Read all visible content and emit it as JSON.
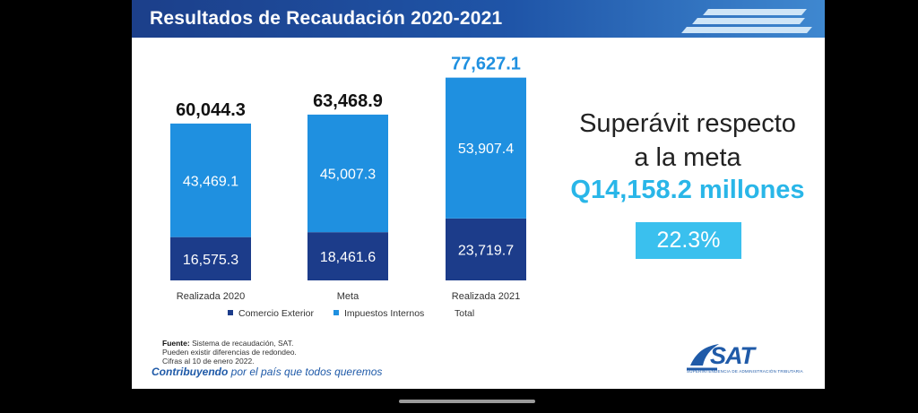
{
  "header": {
    "title": "Resultados de Recaudación 2020-2021"
  },
  "chart_data": {
    "type": "bar",
    "stacked": true,
    "categories": [
      "Realizada 2020",
      "Meta",
      "Realizada 2021"
    ],
    "series": [
      {
        "name": "Comercio Exterior",
        "values": [
          16575.3,
          18461.6,
          23719.7
        ],
        "labels": [
          "16,575.3",
          "18,461.6",
          "23,719.7"
        ],
        "color": "#1c3c8a"
      },
      {
        "name": "Impuestos Internos",
        "values": [
          43469.1,
          45007.3,
          53907.4
        ],
        "labels": [
          "43,469.1",
          "45,007.3",
          "53,907.4"
        ],
        "color": "#1f90e0"
      }
    ],
    "totals": [
      "60,044.3",
      "63,468.9",
      "77,627.1"
    ],
    "total_colors": [
      "#111111",
      "#111111",
      "#1f90e0"
    ],
    "legend": [
      {
        "label": "Comercio Exterior",
        "color": "#1c3c8a"
      },
      {
        "label": "Impuestos Internos",
        "color": "#1f90e0"
      },
      {
        "label": "Total",
        "color": ""
      }
    ],
    "legend_position": "bottom",
    "grid": false
  },
  "summary": {
    "line1": "Superávit respecto",
    "line2": "a la meta",
    "amount": "Q14,158.2 millones",
    "percent": "22.3%"
  },
  "footer": {
    "source_label": "Fuente:",
    "source_text": "Sistema de recaudación, SAT.",
    "note1": "Pueden existir diferencias de redondeo.",
    "note2": "Cifras al 10 de enero 2022.",
    "slogan_bold": "Contribuyendo",
    "slogan_rest": " por el país que todos queremos"
  },
  "logo": {
    "word": "SAT",
    "subtitle": "SUPERINTENDENCIA DE ADMINISTRACIÓN TRIBUTARIA"
  }
}
